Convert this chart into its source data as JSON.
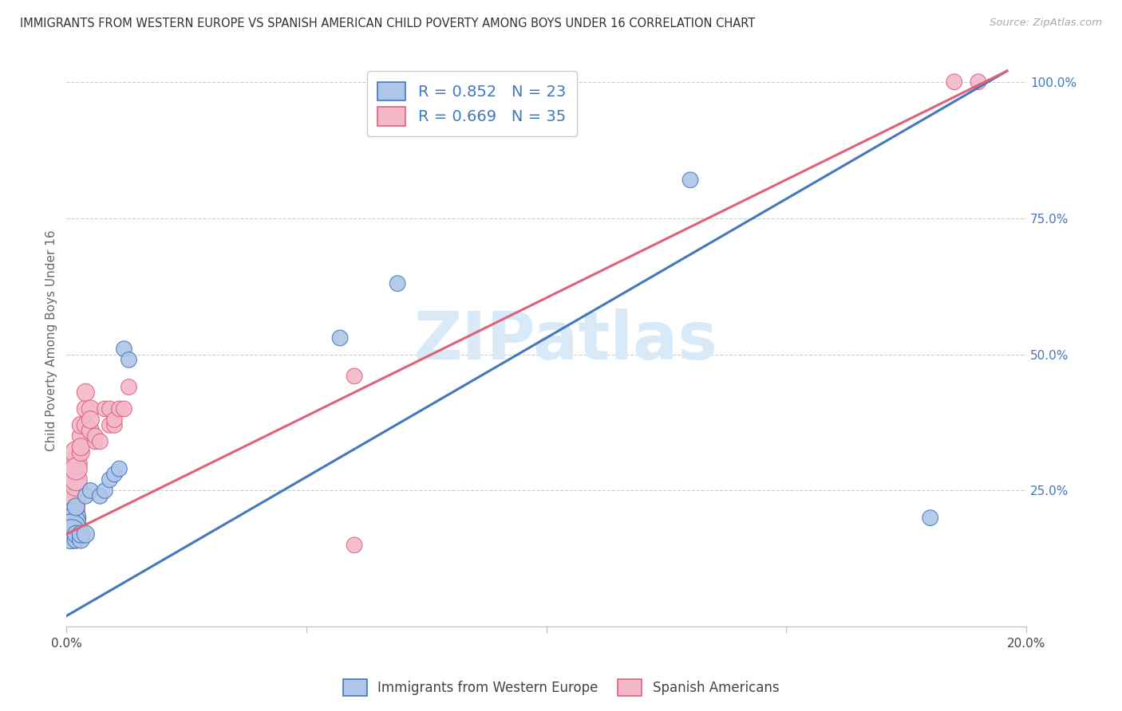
{
  "title": "IMMIGRANTS FROM WESTERN EUROPE VS SPANISH AMERICAN CHILD POVERTY AMONG BOYS UNDER 16 CORRELATION CHART",
  "source": "Source: ZipAtlas.com",
  "ylabel": "Child Poverty Among Boys Under 16",
  "blue_R": 0.852,
  "blue_N": 23,
  "pink_R": 0.669,
  "pink_N": 35,
  "blue_color": "#aec6e8",
  "blue_line_color": "#4477bb",
  "pink_color": "#f4b8cb",
  "pink_line_color": "#e0607a",
  "watermark_text": "ZIPatlas",
  "watermark_color": "#d8eaf8",
  "background_color": "#ffffff",
  "grid_color": "#cccccc",
  "blue_scatter_x": [
    0.001,
    0.001,
    0.001,
    0.001,
    0.002,
    0.002,
    0.002,
    0.003,
    0.003,
    0.004,
    0.004,
    0.005,
    0.007,
    0.008,
    0.009,
    0.01,
    0.011,
    0.012,
    0.013,
    0.057,
    0.069,
    0.13,
    0.18
  ],
  "blue_scatter_y": [
    0.2,
    0.19,
    0.18,
    0.17,
    0.16,
    0.17,
    0.22,
    0.16,
    0.17,
    0.17,
    0.24,
    0.25,
    0.24,
    0.25,
    0.27,
    0.28,
    0.29,
    0.51,
    0.49,
    0.53,
    0.63,
    0.82,
    0.2
  ],
  "pink_scatter_x": [
    0.001,
    0.001,
    0.001,
    0.001,
    0.001,
    0.002,
    0.002,
    0.002,
    0.002,
    0.002,
    0.003,
    0.003,
    0.003,
    0.003,
    0.004,
    0.004,
    0.004,
    0.005,
    0.005,
    0.005,
    0.006,
    0.006,
    0.007,
    0.008,
    0.009,
    0.009,
    0.01,
    0.01,
    0.011,
    0.012,
    0.013,
    0.06,
    0.06,
    0.185,
    0.19
  ],
  "pink_scatter_y": [
    0.2,
    0.21,
    0.22,
    0.23,
    0.19,
    0.26,
    0.27,
    0.3,
    0.32,
    0.29,
    0.32,
    0.35,
    0.33,
    0.37,
    0.4,
    0.37,
    0.43,
    0.4,
    0.36,
    0.38,
    0.34,
    0.35,
    0.34,
    0.4,
    0.37,
    0.4,
    0.37,
    0.38,
    0.4,
    0.4,
    0.44,
    0.46,
    0.15,
    1.0,
    1.0
  ],
  "blue_sizes": [
    700,
    700,
    700,
    700,
    250,
    250,
    250,
    250,
    250,
    250,
    200,
    200,
    200,
    200,
    200,
    200,
    200,
    200,
    200,
    200,
    200,
    200,
    200
  ],
  "pink_sizes": [
    600,
    600,
    600,
    600,
    600,
    400,
    400,
    400,
    400,
    400,
    250,
    250,
    250,
    250,
    250,
    250,
    250,
    250,
    250,
    250,
    200,
    200,
    200,
    200,
    200,
    200,
    200,
    200,
    200,
    200,
    200,
    200,
    200,
    200,
    200
  ],
  "xmin": 0.0,
  "xmax": 0.2,
  "ymin": 0.0,
  "ymax": 1.05,
  "blue_line_x": [
    0.0,
    0.196
  ],
  "blue_line_y": [
    0.02,
    1.02
  ],
  "pink_line_x": [
    0.0,
    0.196
  ],
  "pink_line_y": [
    0.17,
    1.02
  ],
  "xtick_positions": [
    0.0,
    0.05,
    0.1,
    0.15,
    0.2
  ],
  "xtick_labels": [
    "0.0%",
    "",
    "",
    "",
    "20.0%"
  ],
  "ytick_right_positions": [
    0.25,
    0.5,
    0.75,
    1.0
  ],
  "ytick_right_labels": [
    "25.0%",
    "50.0%",
    "75.0%",
    "100.0%"
  ]
}
